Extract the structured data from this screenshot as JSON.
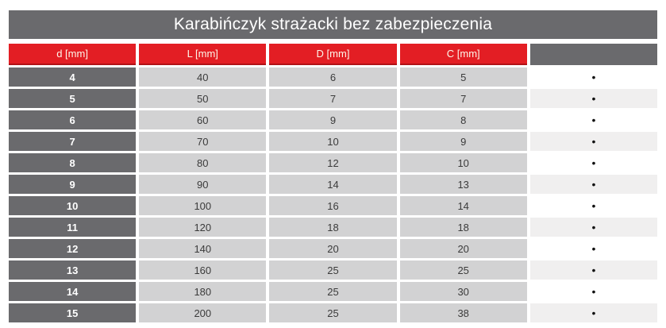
{
  "title": "Karabińczyk strażacki bez zabezpieczenia",
  "colors": {
    "header_red": "#e31e24",
    "header_red_border": "#b11217",
    "dark_gray": "#6a6a6d",
    "cell_gray": "#d2d2d3",
    "alt_row_gray": "#f0efef"
  },
  "table": {
    "columns": [
      "d [mm]",
      "L [mm]",
      "D [mm]",
      "C [mm]",
      ""
    ],
    "rows": [
      {
        "d": "4",
        "L": "40",
        "D": "6",
        "C": "5",
        "marker": "•"
      },
      {
        "d": "5",
        "L": "50",
        "D": "7",
        "C": "7",
        "marker": "•"
      },
      {
        "d": "6",
        "L": "60",
        "D": "9",
        "C": "8",
        "marker": "•"
      },
      {
        "d": "7",
        "L": "70",
        "D": "10",
        "C": "9",
        "marker": "•"
      },
      {
        "d": "8",
        "L": "80",
        "D": "12",
        "C": "10",
        "marker": "•"
      },
      {
        "d": "9",
        "L": "90",
        "D": "14",
        "C": "13",
        "marker": "•"
      },
      {
        "d": "10",
        "L": "100",
        "D": "16",
        "C": "14",
        "marker": "•"
      },
      {
        "d": "11",
        "L": "120",
        "D": "18",
        "C": "18",
        "marker": "•"
      },
      {
        "d": "12",
        "L": "140",
        "D": "20",
        "C": "20",
        "marker": "•"
      },
      {
        "d": "13",
        "L": "160",
        "D": "25",
        "C": "25",
        "marker": "•"
      },
      {
        "d": "14",
        "L": "180",
        "D": "25",
        "C": "30",
        "marker": "•"
      },
      {
        "d": "15",
        "L": "200",
        "D": "25",
        "C": "38",
        "marker": "•"
      }
    ]
  }
}
